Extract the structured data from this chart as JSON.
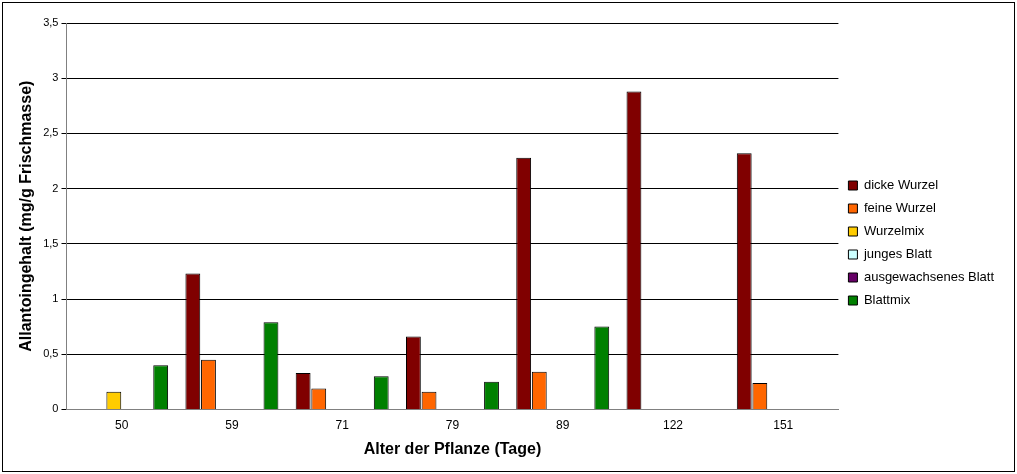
{
  "chart_data": {
    "type": "bar",
    "xlabel": "Alter der Pflanze (Tage)",
    "ylabel": "Allantoingehalt (mg/g Frischmasse)",
    "categories": [
      "50",
      "59",
      "71",
      "79",
      "89",
      "122",
      "151"
    ],
    "series": [
      {
        "name": "dicke Wurzel",
        "color": "#800000",
        "values": [
          null,
          1.23,
          0.33,
          0.66,
          2.28,
          2.88,
          2.32
        ]
      },
      {
        "name": "feine Wurzel",
        "color": "#ff6600",
        "values": [
          null,
          0.45,
          0.19,
          0.16,
          0.34,
          null,
          0.24
        ]
      },
      {
        "name": "Wurzelmix",
        "color": "#ffcc00",
        "values": [
          0.16,
          null,
          null,
          null,
          null,
          null,
          null
        ]
      },
      {
        "name": "junges Blatt",
        "color": "#ccffff",
        "values": [
          null,
          null,
          null,
          null,
          null,
          null,
          null
        ]
      },
      {
        "name": "ausgewachsenes Blatt",
        "color": "#660066",
        "values": [
          null,
          null,
          null,
          null,
          null,
          null,
          null
        ]
      },
      {
        "name": "Blattmix",
        "color": "#008000",
        "values": [
          0.4,
          0.79,
          0.3,
          0.25,
          0.75,
          null,
          null
        ]
      }
    ],
    "ylim": [
      0,
      3.5
    ],
    "yticks": [
      0,
      {
        "value": 0.5,
        "label": "0,5"
      },
      1,
      {
        "value": 1.5,
        "label": "1,5"
      },
      2,
      {
        "value": 2.5,
        "label": "2,5"
      },
      3,
      {
        "value": 3.5,
        "label": "3,5"
      }
    ],
    "grid": "y",
    "legend": "right"
  }
}
